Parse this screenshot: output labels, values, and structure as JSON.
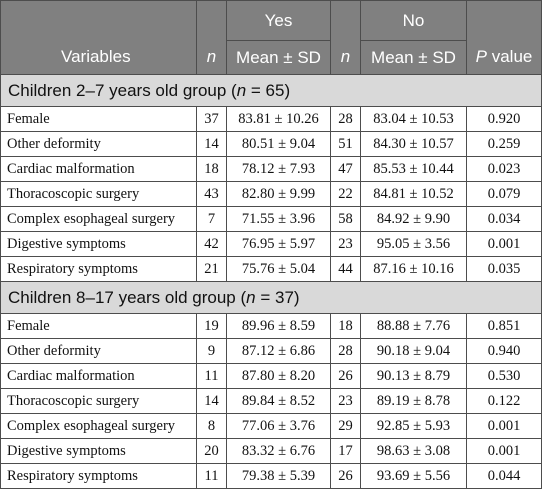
{
  "header": {
    "variables": "Variables",
    "n": "n",
    "yes": "Yes",
    "no": "No",
    "mean_sd": "Mean ± SD",
    "p_italic": "P",
    "p_rest": " value"
  },
  "groups": [
    {
      "title_pre": "Children 2–7 years old group (",
      "title_n": "n",
      "title_post": " = 65)",
      "rows": [
        {
          "variable": "Female",
          "n_yes": "37",
          "yes": "83.81 ± 10.26",
          "n_no": "28",
          "no": "83.04 ± 10.53",
          "p": "0.920"
        },
        {
          "variable": "Other deformity",
          "n_yes": "14",
          "yes": "80.51 ± 9.04",
          "n_no": "51",
          "no": "84.30 ± 10.57",
          "p": "0.259"
        },
        {
          "variable": "Cardiac malformation",
          "n_yes": "18",
          "yes": "78.12 ± 7.93",
          "n_no": "47",
          "no": "85.53 ± 10.44",
          "p": "0.023"
        },
        {
          "variable": "Thoracoscopic surgery",
          "n_yes": "43",
          "yes": "82.80 ± 9.99",
          "n_no": "22",
          "no": "84.81 ± 10.52",
          "p": "0.079"
        },
        {
          "variable": "Complex esophageal surgery",
          "n_yes": "7",
          "yes": "71.55 ± 3.96",
          "n_no": "58",
          "no": "84.92 ± 9.90",
          "p": "0.034"
        },
        {
          "variable": "Digestive symptoms",
          "n_yes": "42",
          "yes": "76.95 ± 5.97",
          "n_no": "23",
          "no": "95.05 ± 3.56",
          "p": "0.001"
        },
        {
          "variable": "Respiratory symptoms",
          "n_yes": "21",
          "yes": "75.76 ± 5.04",
          "n_no": "44",
          "no": "87.16 ± 10.16",
          "p": "0.035"
        }
      ]
    },
    {
      "title_pre": "Children 8–17 years old group (",
      "title_n": "n",
      "title_post": " = 37)",
      "rows": [
        {
          "variable": "Female",
          "n_yes": "19",
          "yes": "89.96 ± 8.59",
          "n_no": "18",
          "no": "88.88 ± 7.76",
          "p": "0.851"
        },
        {
          "variable": "Other deformity",
          "n_yes": "9",
          "yes": "87.12 ± 6.86",
          "n_no": "28",
          "no": "90.18 ± 9.04",
          "p": "0.940"
        },
        {
          "variable": "Cardiac malformation",
          "n_yes": "11",
          "yes": "87.80 ± 8.20",
          "n_no": "26",
          "no": "90.13 ± 8.79",
          "p": "0.530"
        },
        {
          "variable": "Thoracoscopic surgery",
          "n_yes": "14",
          "yes": "89.84 ± 8.52",
          "n_no": "23",
          "no": "89.19 ± 8.78",
          "p": "0.122"
        },
        {
          "variable": "Complex esophageal surgery",
          "n_yes": "8",
          "yes": "77.06 ± 3.76",
          "n_no": "29",
          "no": "92.85 ± 5.93",
          "p": "0.001"
        },
        {
          "variable": "Digestive symptoms",
          "n_yes": "20",
          "yes": "83.32 ± 6.76",
          "n_no": "17",
          "no": "98.63 ± 3.08",
          "p": "0.001"
        },
        {
          "variable": "Respiratory symptoms",
          "n_yes": "11",
          "yes": "79.38 ± 5.39",
          "n_no": "26",
          "no": "93.69 ± 5.56",
          "p": "0.044"
        }
      ]
    }
  ],
  "colors": {
    "header_bg": "#808080",
    "header_text": "#ffffff",
    "group_bg": "#d9d9d9",
    "border": "#4d4d4d"
  }
}
